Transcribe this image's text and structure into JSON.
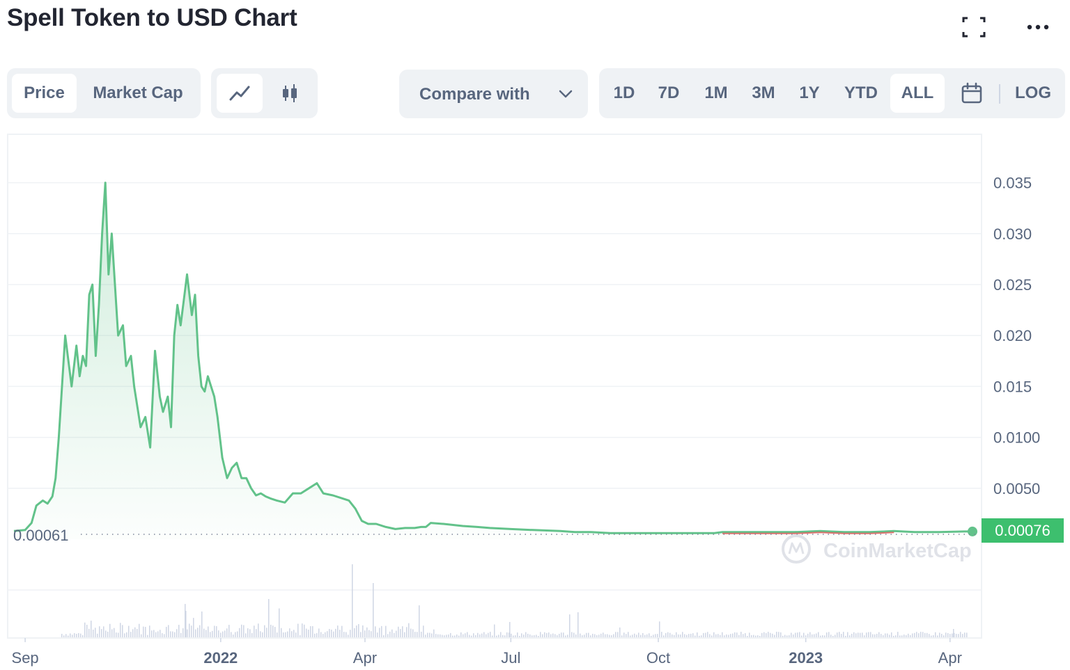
{
  "header": {
    "title": "Spell Token to USD Chart"
  },
  "toolbar": {
    "metric_tabs": [
      "Price",
      "Market Cap"
    ],
    "active_metric": "Price",
    "compare_label": "Compare with",
    "ranges": [
      "1D",
      "7D",
      "1M",
      "3M",
      "1Y",
      "YTD",
      "ALL"
    ],
    "active_range": "ALL",
    "log_label": "LOG"
  },
  "colors": {
    "line": "#62c28a",
    "line_down": "#d9534f",
    "current_badge": "#3dbf6e",
    "grid": "#eff2f5",
    "text_muted": "#58667e"
  },
  "chart_data": {
    "type": "line",
    "title": "Spell Token to USD Chart",
    "series": [
      {
        "values_x": [
          "2021-08-25",
          "2021-09-01",
          "2021-09-05",
          "2021-09-08",
          "2021-09-12",
          "2021-09-15",
          "2021-09-18",
          "2021-09-20",
          "2021-09-22",
          "2021-09-26",
          "2021-09-30",
          "2021-10-03",
          "2021-10-05",
          "2021-10-07",
          "2021-10-09",
          "2021-10-11",
          "2021-10-13",
          "2021-10-15",
          "2021-10-17",
          "2021-10-19",
          "2021-10-21",
          "2021-10-23",
          "2021-10-25",
          "2021-10-27",
          "2021-10-29",
          "2021-11-01",
          "2021-11-03",
          "2021-11-06",
          "2021-11-08",
          "2021-11-10",
          "2021-11-12",
          "2021-11-15",
          "2021-11-18",
          "2021-11-21",
          "2021-11-24",
          "2021-11-26",
          "2021-11-29",
          "2021-12-01",
          "2021-12-03",
          "2021-12-05",
          "2021-12-07",
          "2021-12-09",
          "2021-12-11",
          "2021-12-14",
          "2021-12-16",
          "2021-12-18",
          "2021-12-20",
          "2021-12-22",
          "2021-12-24",
          "2021-12-26",
          "2021-12-28",
          "2021-12-30",
          "2022-01-02",
          "2022-01-05",
          "2022-01-08",
          "2022-01-11",
          "2022-01-14",
          "2022-01-17",
          "2022-01-20",
          "2022-01-23",
          "2022-01-26",
          "2022-01-29",
          "2022-02-01",
          "2022-02-05",
          "2022-02-10",
          "2022-02-15",
          "2022-02-20",
          "2022-02-25",
          "2022-03-02",
          "2022-03-06",
          "2022-03-12",
          "2022-03-18",
          "2022-03-22",
          "2022-03-26",
          "2022-03-30",
          "2022-04-03",
          "2022-04-08",
          "2022-04-14",
          "2022-04-20",
          "2022-04-26",
          "2022-05-02",
          "2022-05-06",
          "2022-05-09",
          "2022-05-12",
          "2022-05-20",
          "2022-06-01",
          "2022-06-10",
          "2022-06-18",
          "2022-07-01",
          "2022-07-15",
          "2022-08-01",
          "2022-08-10",
          "2022-08-20",
          "2022-09-01",
          "2022-09-15",
          "2022-10-01",
          "2022-10-20",
          "2022-11-05",
          "2022-11-10",
          "2022-11-25",
          "2022-12-10",
          "2022-12-25",
          "2023-01-10",
          "2023-01-25",
          "2023-02-10",
          "2023-02-25",
          "2023-03-10",
          "2023-03-25",
          "2023-04-10",
          "2023-04-15"
        ],
        "values_y": [
          0.0008,
          0.0009,
          0.0016,
          0.0033,
          0.0038,
          0.0035,
          0.0042,
          0.006,
          0.01,
          0.02,
          0.015,
          0.019,
          0.016,
          0.018,
          0.017,
          0.024,
          0.025,
          0.018,
          0.023,
          0.03,
          0.035,
          0.026,
          0.03,
          0.025,
          0.02,
          0.021,
          0.017,
          0.018,
          0.015,
          0.013,
          0.011,
          0.012,
          0.009,
          0.0185,
          0.014,
          0.0125,
          0.014,
          0.011,
          0.02,
          0.023,
          0.021,
          0.0235,
          0.026,
          0.022,
          0.024,
          0.018,
          0.015,
          0.0145,
          0.016,
          0.015,
          0.014,
          0.012,
          0.008,
          0.006,
          0.007,
          0.0075,
          0.006,
          0.006,
          0.005,
          0.0043,
          0.0045,
          0.0042,
          0.004,
          0.0038,
          0.0036,
          0.0045,
          0.0045,
          0.005,
          0.0055,
          0.0045,
          0.0043,
          0.004,
          0.0038,
          0.003,
          0.0018,
          0.0015,
          0.0015,
          0.0012,
          0.001,
          0.0011,
          0.0011,
          0.0012,
          0.0012,
          0.0016,
          0.0015,
          0.0013,
          0.0012,
          0.0011,
          0.001,
          0.0009,
          0.0008,
          0.0007,
          0.0007,
          0.0006,
          0.0006,
          0.0006,
          0.0006,
          0.0006,
          0.0007,
          0.0007,
          0.0007,
          0.0007,
          0.0008,
          0.0007,
          0.0007,
          0.0008,
          0.0007,
          0.0007,
          0.00076,
          0.00076
        ]
      }
    ],
    "y_ticks": [
      "0.035",
      "0.030",
      "0.025",
      "0.020",
      "0.015",
      "0.0100",
      "0.0050"
    ],
    "x_ticks": [
      {
        "label": "Sep",
        "bold": false
      },
      {
        "label": "2022",
        "bold": true
      },
      {
        "label": "Apr",
        "bold": false
      },
      {
        "label": "Jul",
        "bold": false
      },
      {
        "label": "Oct",
        "bold": false
      },
      {
        "label": "2023",
        "bold": true
      },
      {
        "label": "Apr",
        "bold": false
      }
    ],
    "ylim": [
      0,
      0.037
    ],
    "reference_line_value": "0.00061",
    "current_value": "0.00076",
    "watermark": "CoinMarketCap",
    "grid": true,
    "volume_bars": true
  }
}
